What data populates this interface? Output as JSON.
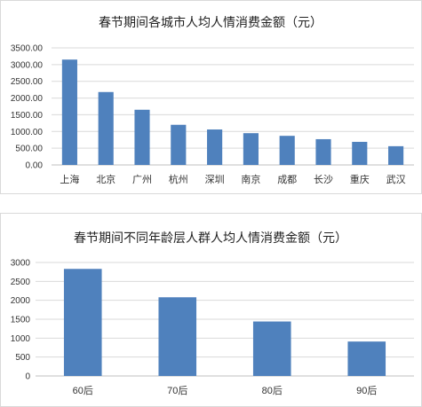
{
  "chart_data": [
    {
      "type": "bar",
      "title": "春节期间各城市人均人情消费金额（元）",
      "categories": [
        "上海",
        "北京",
        "广州",
        "杭州",
        "深圳",
        "南京",
        "成都",
        "长沙",
        "重庆",
        "武汉"
      ],
      "values": [
        3150,
        2180,
        1650,
        1200,
        1060,
        950,
        870,
        770,
        690,
        560
      ],
      "ylim": [
        0,
        3500
      ],
      "yticks": [
        "0.00",
        "500.00",
        "1000.00",
        "1500.00",
        "2000.00",
        "2500.00",
        "3000.00",
        "3500.00"
      ],
      "grid": true,
      "color": "#4f81bd"
    },
    {
      "type": "bar",
      "title": "春节期间不同年龄层人群人均人情消费金额（元）",
      "categories": [
        "60后",
        "70后",
        "80后",
        "90后"
      ],
      "values": [
        2830,
        2080,
        1440,
        910
      ],
      "ylim": [
        0,
        3000
      ],
      "yticks": [
        "0",
        "500",
        "1000",
        "1500",
        "2000",
        "2500",
        "3000"
      ],
      "grid": true,
      "color": "#4f81bd"
    }
  ]
}
